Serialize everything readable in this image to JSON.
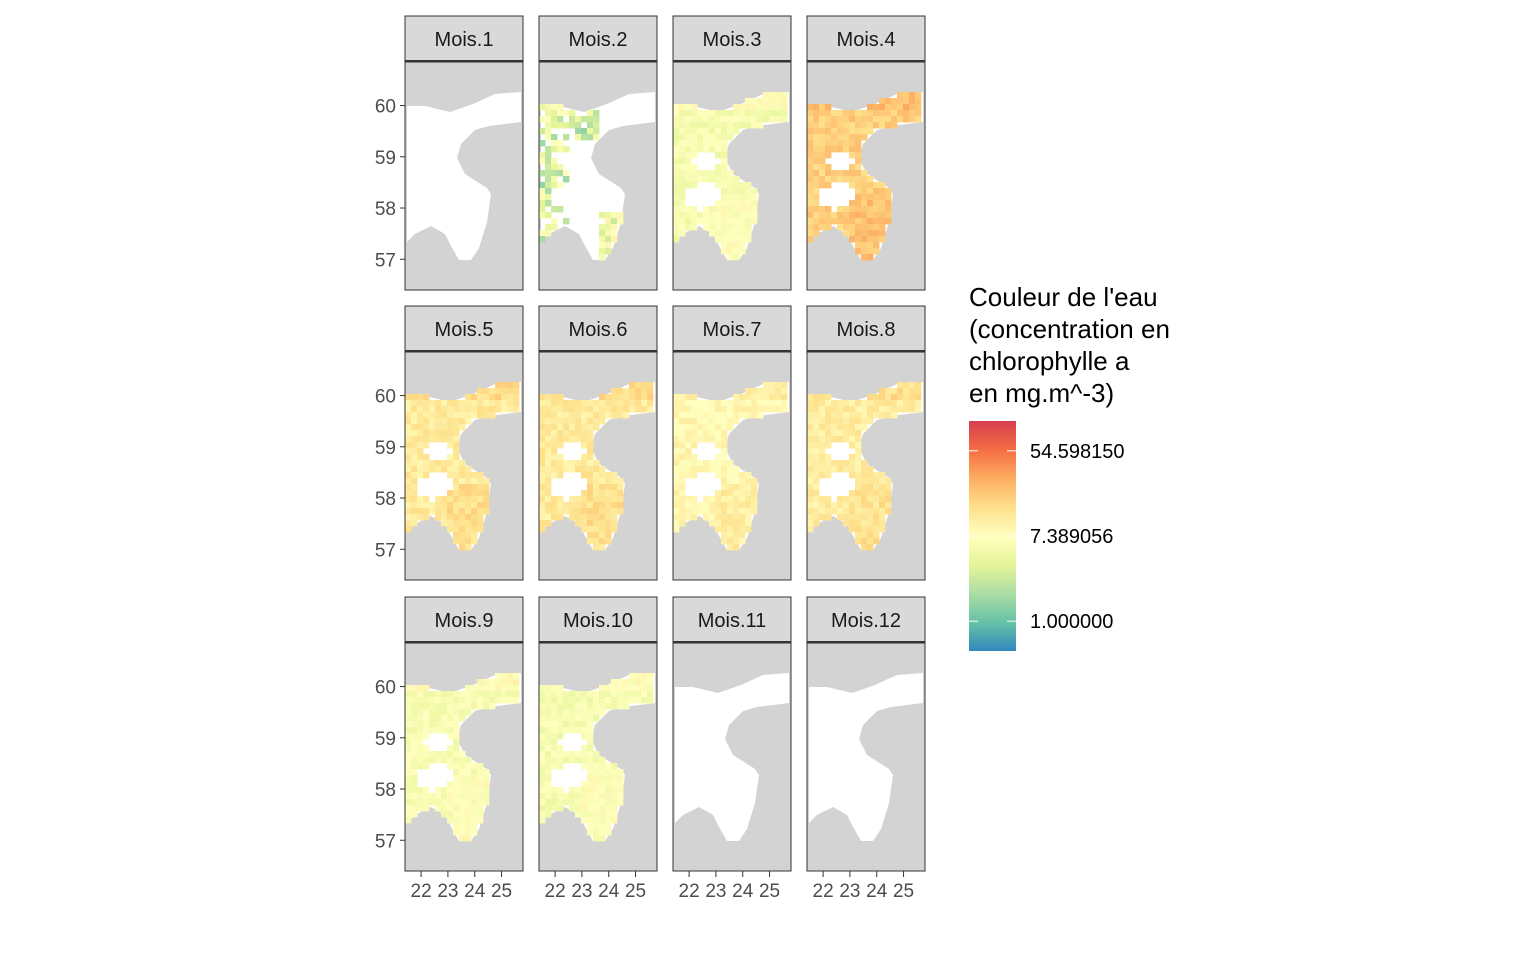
{
  "chart_data": {
    "type": "heatmap",
    "facet_labels": [
      "Mois.1",
      "Mois.2",
      "Mois.3",
      "Mois.4",
      "Mois.5",
      "Mois.6",
      "Mois.7",
      "Mois.8",
      "Mois.9",
      "Mois.10",
      "Mois.11",
      "Mois.12"
    ],
    "xlabel": "",
    "ylabel": "",
    "x_ticks": [
      22,
      23,
      24,
      25
    ],
    "x_tick_labels": [
      "22",
      "23",
      "24",
      "25"
    ],
    "y_ticks": [
      57,
      58,
      59,
      60
    ],
    "y_tick_labels": [
      "57",
      "58",
      "59",
      "60"
    ],
    "xlim": [
      21.4,
      25.8
    ],
    "ylim": [
      56.4,
      60.85
    ],
    "facet_mean_log_chl": [
      null,
      1.3,
      1.75,
      2.9,
      2.45,
      2.45,
      2.15,
      2.4,
      1.8,
      1.75,
      null,
      null
    ],
    "facet_coverage": [
      0,
      0.35,
      1,
      1,
      1,
      1,
      1,
      1,
      1,
      1,
      0,
      0
    ],
    "legend": {
      "title_lines": [
        "Couleur de l'eau",
        "(concentration en",
        "chlorophylle a",
        "en mg.m^-3)"
      ],
      "breaks": [
        1.0,
        7.389056,
        54.59815
      ],
      "break_labels": [
        "54.598150",
        "7.389056",
        "1.000000"
      ],
      "scale": "log",
      "log_limits": [
        -0.7,
        4.7
      ],
      "palette": "Spectral",
      "colors": [
        "#3288bd",
        "#66c2a5",
        "#abdda4",
        "#e6f598",
        "#ffffbf",
        "#fee08b",
        "#fdae61",
        "#f46d43",
        "#d53e4f"
      ]
    },
    "land_color": "#d3d3d3",
    "na_color": "#ffffff",
    "strip_fill": "#d9d9d9",
    "grid": false
  }
}
